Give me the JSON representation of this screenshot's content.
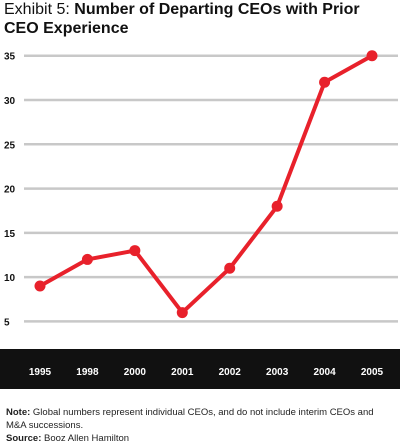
{
  "title_prefix": "Exhibit 5:",
  "title_main": "Number of Departing CEOs with Prior CEO Experience",
  "chart_data": {
    "type": "line",
    "categories": [
      "1995",
      "1998",
      "2000",
      "2001",
      "2002",
      "2003",
      "2004",
      "2005"
    ],
    "series": [
      {
        "values": [
          9,
          12,
          13,
          6,
          11,
          18,
          32,
          35
        ]
      }
    ],
    "yticks": [
      5,
      10,
      15,
      20,
      25,
      30,
      35
    ],
    "ylim": [
      2,
      37
    ],
    "grid": true,
    "line_color": "#e8212b",
    "grid_color": "#c8c8c8",
    "axis_band_color": "#111111"
  },
  "footnote": {
    "note_label": "Note:",
    "note_text": "Global numbers represent individual CEOs, and do not include interim CEOs and M&A successions.",
    "source_label": "Source:",
    "source_text": "Booz Allen Hamilton"
  }
}
